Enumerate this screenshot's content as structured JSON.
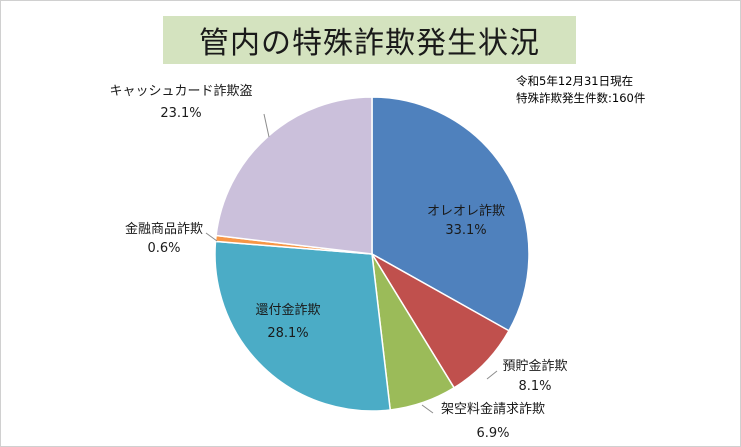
{
  "title": "管内の特殊詐欺発生状況",
  "note": {
    "line1": "令和5年12月31日現在",
    "line2": "特殊詐欺発生件数:160件"
  },
  "chart_data": {
    "type": "pie",
    "start_angle_deg": 0,
    "direction": "clockwise",
    "slices": [
      {
        "name": "オレオレ詐欺",
        "value": 33.1,
        "label": "33.1%",
        "color": "#4f81bd"
      },
      {
        "name": "預貯金詐欺",
        "value": 8.1,
        "label": "8.1%",
        "color": "#c0504d"
      },
      {
        "name": "架空料金請求詐欺",
        "value": 6.9,
        "label": "6.9%",
        "color": "#9bbb59"
      },
      {
        "name": "還付金詐欺",
        "value": 28.1,
        "label": "28.1%",
        "color": "#4bacc6"
      },
      {
        "name": "金融商品詐欺",
        "value": 0.6,
        "label": "0.6%",
        "color": "#f79646"
      },
      {
        "name": "キャッシュカード詐欺盗",
        "value": 23.1,
        "label": "23.1%",
        "color": "#cbc0db"
      }
    ]
  }
}
